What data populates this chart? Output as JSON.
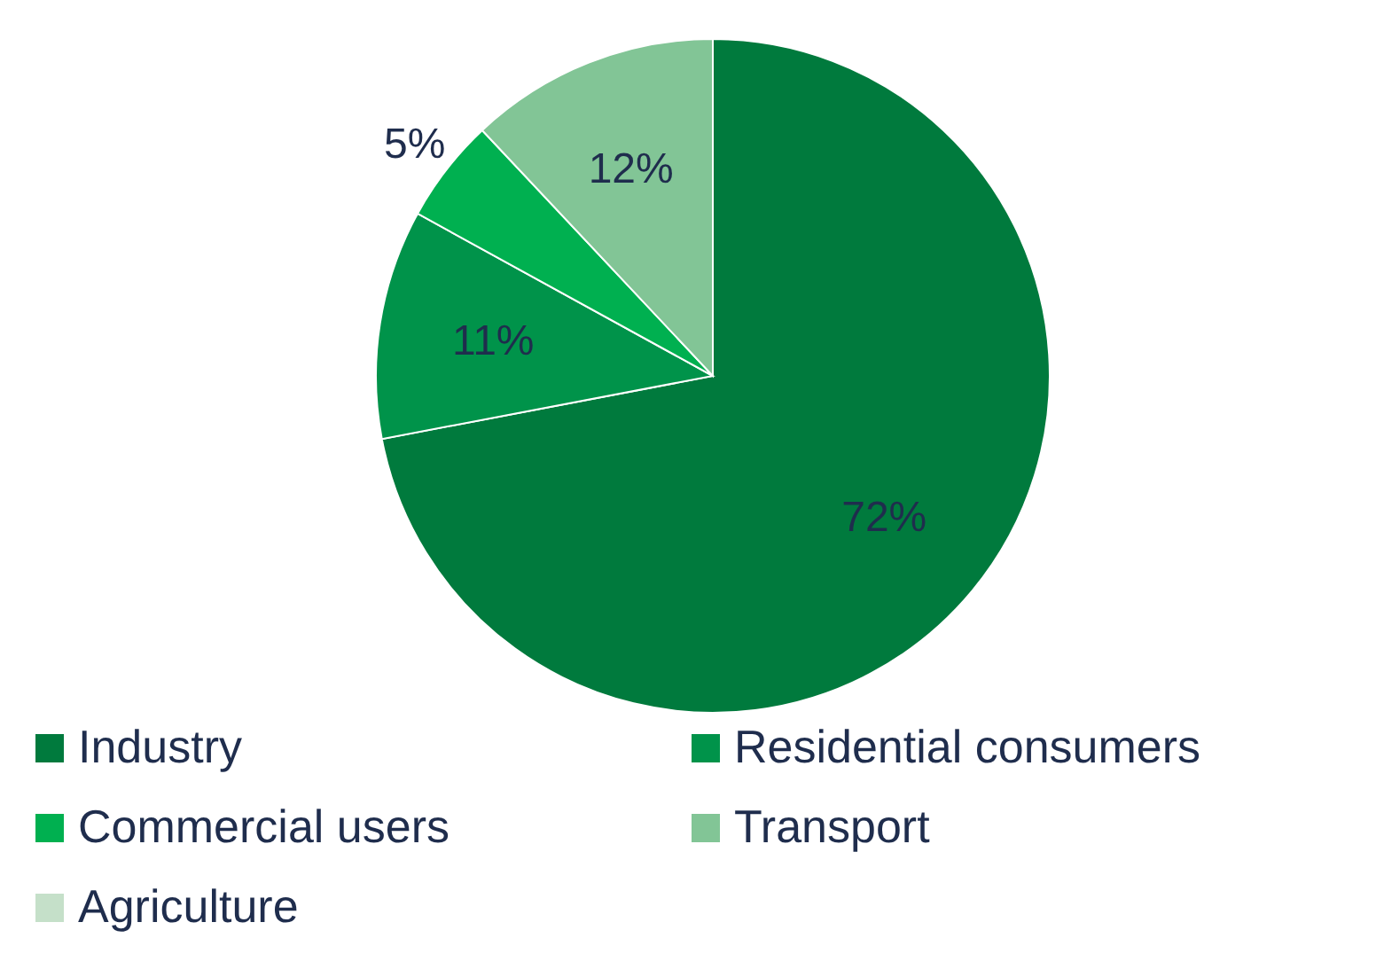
{
  "chart_data": {
    "type": "pie",
    "categories": [
      "Industry",
      "Residential consumers",
      "Commercial users",
      "Transport",
      "Agriculture"
    ],
    "values": [
      72,
      11,
      5,
      12,
      0
    ],
    "colors": [
      "#007a3d",
      "#00934a",
      "#00b050",
      "#82c596",
      "#c5e0c9"
    ],
    "value_labels": [
      "72%",
      "11%",
      "5%",
      "12%",
      null
    ],
    "legend": "bottom"
  }
}
